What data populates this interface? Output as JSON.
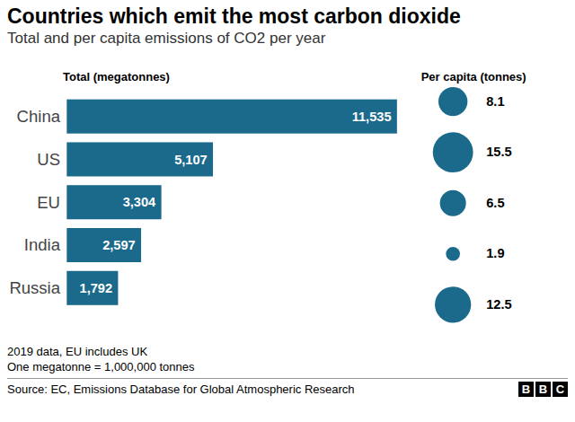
{
  "title": "Countries which emit the most carbon dioxide",
  "subtitle": "Total and per capita emissions of CO2 per year",
  "notes": [
    "2019 data, EU includes UK",
    "One megatonne = 1,000,000 tonnes"
  ],
  "source": "Source: EC, Emissions Database for Global Atmospheric Research",
  "logo": "BBC",
  "chart_data": [
    {
      "type": "bar",
      "orientation": "horizontal",
      "x_label": "Total (megatonnes)",
      "categories": [
        "China",
        "US",
        "EU",
        "India",
        "Russia"
      ],
      "values": [
        11535,
        5107,
        3304,
        2597,
        1792
      ],
      "value_labels": [
        "11,535",
        "5,107",
        "3,304",
        "2,597",
        "1,792"
      ],
      "color": "#1b6a8c",
      "data_labels": true,
      "tick_labels": "y"
    },
    {
      "type": "bubble",
      "x_label": "Per capita (tonnes)",
      "categories": [
        "China",
        "US",
        "EU",
        "India",
        "Russia"
      ],
      "values": [
        8.1,
        15.5,
        6.5,
        1.9,
        12.5
      ],
      "sizes": [
        8.1,
        15.5,
        6.5,
        1.9,
        12.5
      ],
      "color": "#1b6a8c",
      "data_labels": true,
      "tick_labels": false
    }
  ]
}
